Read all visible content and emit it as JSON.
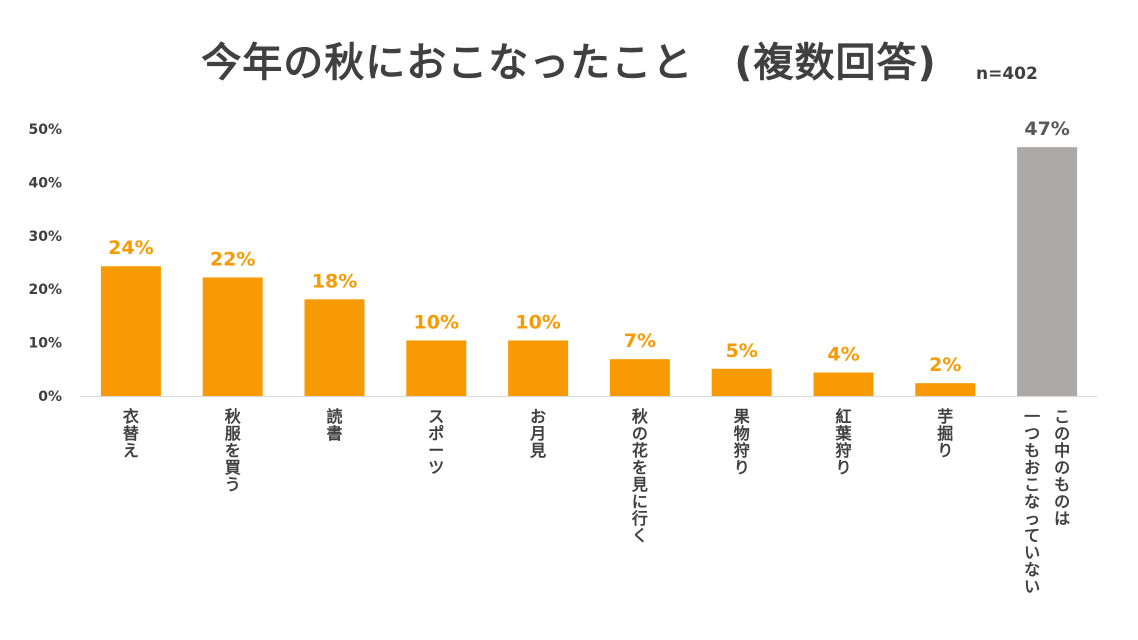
{
  "title": "今年の秋におこなったこと　(複数回答)",
  "sample_size": "n=402",
  "colors": {
    "primary": "#F79A04",
    "other": "#ADA9A8",
    "text": "#404040",
    "axis": "#D9D9D9"
  },
  "chart_data": {
    "type": "bar",
    "title": "今年の秋におこなったこと　(複数回答)",
    "xlabel": "",
    "ylabel": "",
    "ylim": [
      0,
      50
    ],
    "yticks": [
      "0%",
      "10%",
      "20%",
      "30%",
      "40%",
      "50%"
    ],
    "ytick_values": [
      0,
      10,
      20,
      30,
      40,
      50
    ],
    "grid": false,
    "categories": [
      [
        "衣替え"
      ],
      [
        "秋服を買う"
      ],
      [
        "読書"
      ],
      [
        "スポーツ"
      ],
      [
        "お月見"
      ],
      [
        "秋の花を見に行く"
      ],
      [
        "果物狩り"
      ],
      [
        "紅葉狩り"
      ],
      [
        "芋掘り"
      ],
      [
        "この中のものは",
        "一つもおこなっていない"
      ]
    ],
    "values": [
      24.3,
      22.2,
      18.1,
      10.4,
      10.4,
      6.9,
      5.1,
      4.4,
      2.4,
      46.6
    ],
    "labels": [
      "24%",
      "22%",
      "18%",
      "10%",
      "10%",
      "7%",
      "5%",
      "4%",
      "2%",
      "47%"
    ],
    "bar_colors": [
      "#F79A04",
      "#F79A04",
      "#F79A04",
      "#F79A04",
      "#F79A04",
      "#F79A04",
      "#F79A04",
      "#F79A04",
      "#F79A04",
      "#ADA9A8"
    ]
  }
}
